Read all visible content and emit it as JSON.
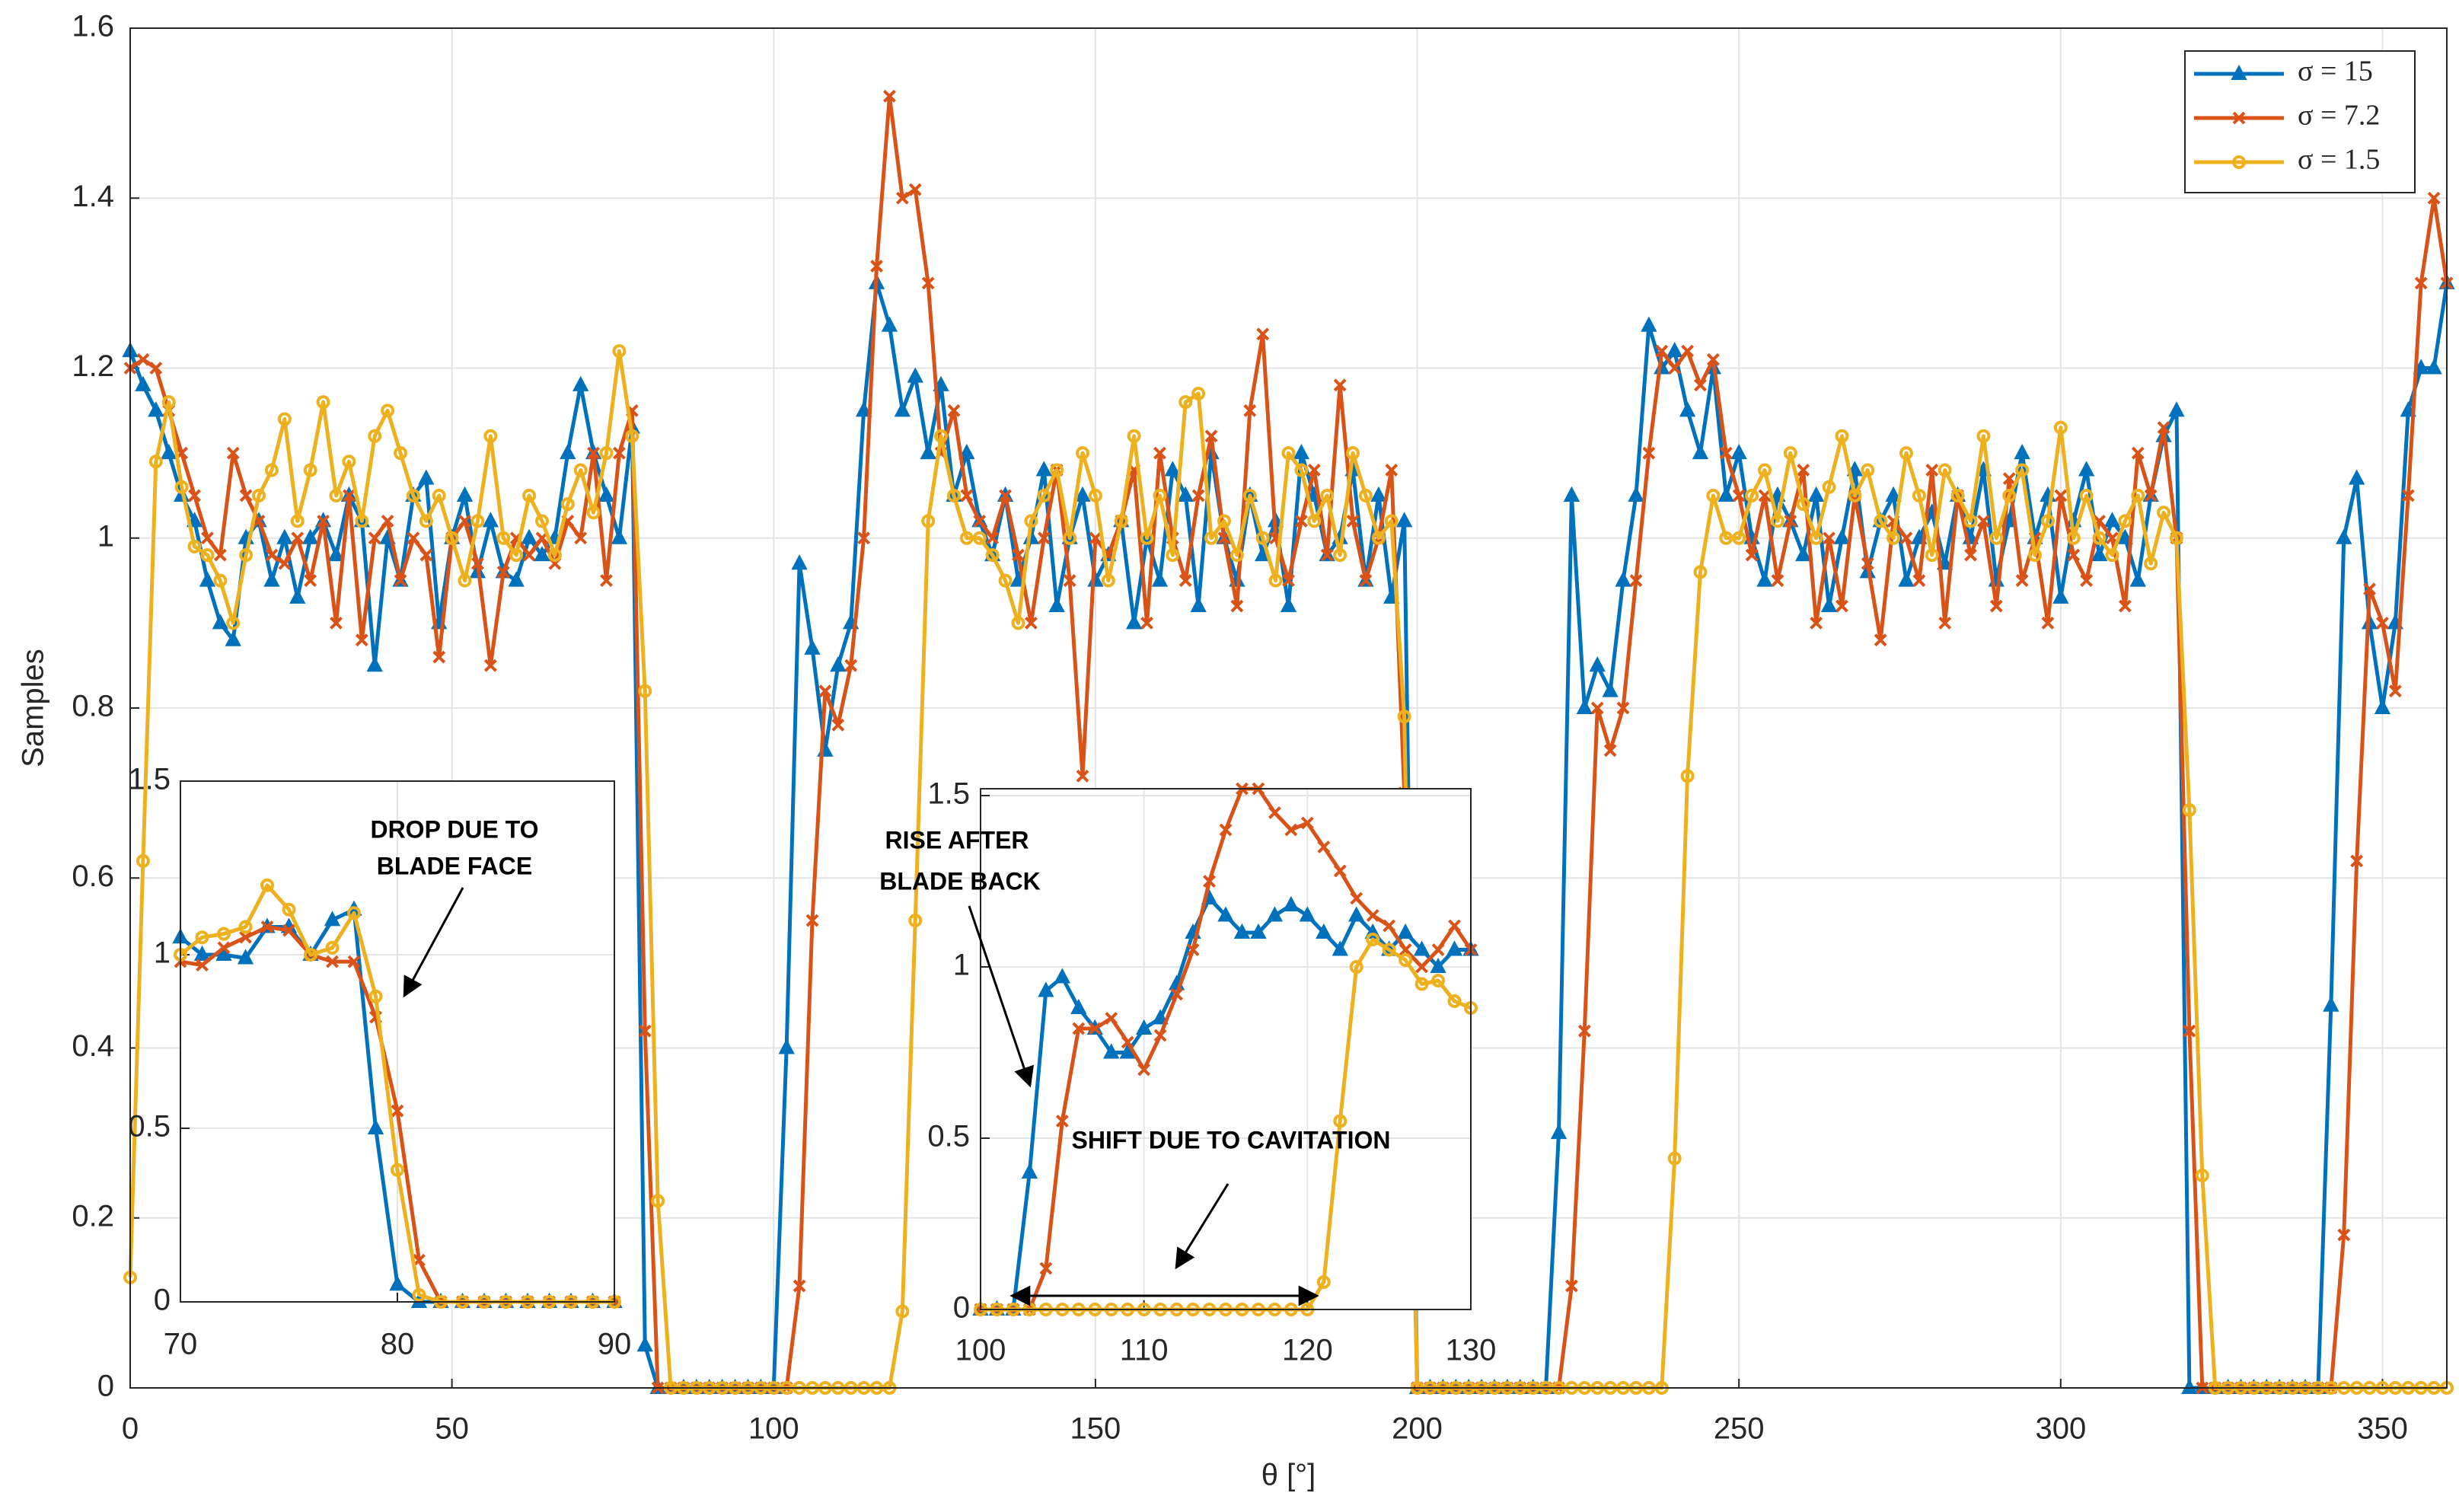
{
  "chart_data": [
    {
      "type": "line",
      "xlabel": "θ [°]",
      "ylabel": "Samples",
      "xlim": [
        0,
        360
      ],
      "ylim": [
        0,
        1.6
      ],
      "xticks": [
        0,
        50,
        100,
        150,
        200,
        250,
        300,
        350
      ],
      "yticks": [
        0,
        0.2,
        0.4,
        0.6,
        0.8,
        1,
        1.2,
        1.4,
        1.6
      ],
      "grid": true,
      "legend": "upper right",
      "x": [
        0,
        2,
        4,
        6,
        8,
        10,
        12,
        14,
        16,
        18,
        20,
        22,
        24,
        26,
        28,
        30,
        32,
        34,
        36,
        38,
        40,
        42,
        44,
        46,
        48,
        50,
        52,
        54,
        56,
        58,
        60,
        62,
        64,
        66,
        68,
        70,
        72,
        74,
        76,
        78,
        80,
        82,
        84,
        86,
        88,
        90,
        92,
        94,
        96,
        98,
        100,
        102,
        104,
        106,
        108,
        110,
        112,
        114,
        116,
        118,
        120,
        122,
        124,
        126,
        128,
        130,
        132,
        134,
        136,
        138,
        140,
        142,
        144,
        146,
        148,
        150,
        152,
        154,
        156,
        158,
        160,
        162,
        164,
        166,
        168,
        170,
        172,
        174,
        176,
        178,
        180,
        182,
        184,
        186,
        188,
        190,
        192,
        194,
        196,
        198,
        200,
        202,
        204,
        206,
        208,
        210,
        212,
        214,
        216,
        218,
        220,
        222,
        224,
        226,
        228,
        230,
        232,
        234,
        236,
        238,
        240,
        242,
        244,
        246,
        248,
        250,
        252,
        254,
        256,
        258,
        260,
        262,
        264,
        266,
        268,
        270,
        272,
        274,
        276,
        278,
        280,
        282,
        284,
        286,
        288,
        290,
        292,
        294,
        296,
        298,
        300,
        302,
        304,
        306,
        308,
        310,
        312,
        314,
        316,
        318,
        320,
        322,
        324,
        326,
        328,
        330,
        332,
        334,
        336,
        338,
        340,
        342,
        344,
        346,
        348,
        350,
        352,
        354,
        356,
        358,
        360
      ],
      "series": [
        {
          "name": "σ = 15",
          "color": "#0072BD",
          "marker": "triangle",
          "values": [
            1.22,
            1.18,
            1.15,
            1.1,
            1.05,
            1.02,
            0.95,
            0.9,
            0.88,
            1.0,
            1.02,
            0.95,
            1.0,
            0.93,
            1.0,
            1.02,
            0.98,
            1.05,
            1.02,
            0.85,
            1.0,
            0.95,
            1.05,
            1.07,
            0.9,
            1.0,
            1.05,
            0.96,
            1.02,
            0.96,
            0.95,
            1.0,
            0.98,
            1.0,
            1.1,
            1.18,
            1.1,
            1.05,
            1.0,
            1.13,
            0.05,
            0,
            0,
            0,
            0,
            0,
            0,
            0,
            0,
            0,
            0,
            0.4,
            0.97,
            0.87,
            0.75,
            0.85,
            0.9,
            1.15,
            1.3,
            1.25,
            1.15,
            1.19,
            1.1,
            1.18,
            1.05,
            1.1,
            1.02,
            0.98,
            1.05,
            0.95,
            1.0,
            1.08,
            0.92,
            1.0,
            1.05,
            0.95,
            0.98,
            1.02,
            0.9,
            1.0,
            0.95,
            1.08,
            1.05,
            0.92,
            1.1,
            1.0,
            0.95,
            1.05,
            0.98,
            1.02,
            0.92,
            1.1,
            1.05,
            0.98,
            1.0,
            1.08,
            0.95,
            1.05,
            0.93,
            1.02,
            0,
            0,
            0,
            0,
            0,
            0,
            0,
            0,
            0,
            0,
            0,
            0.3,
            1.05,
            0.8,
            0.85,
            0.82,
            0.95,
            1.05,
            1.25,
            1.2,
            1.22,
            1.15,
            1.1,
            1.2,
            1.05,
            1.1,
            1.0,
            0.95,
            1.05,
            1.02,
            0.98,
            1.05,
            0.92,
            1.0,
            1.08,
            0.96,
            1.02,
            1.05,
            0.95,
            1.0,
            1.03,
            0.97,
            1.05,
            1.0,
            1.08,
            0.95,
            1.02,
            1.1,
            1.0,
            1.05,
            0.93,
            1.02,
            1.08,
            0.98,
            1.02,
            1.0,
            0.95,
            1.05,
            1.12,
            1.15,
            0,
            0,
            0,
            0,
            0,
            0,
            0,
            0,
            0,
            0,
            0,
            0.45,
            1.0,
            1.07,
            0.9,
            0.8,
            0.9,
            1.15,
            1.2,
            1.2,
            1.3
          ]
        },
        {
          "name": "σ = 7.2",
          "color": "#D95319",
          "marker": "cross",
          "values": [
            1.2,
            1.21,
            1.2,
            1.15,
            1.1,
            1.05,
            1.0,
            0.98,
            1.1,
            1.05,
            1.02,
            0.98,
            0.97,
            1.0,
            0.95,
            1.02,
            0.9,
            1.05,
            0.88,
            1.0,
            1.02,
            0.95,
            1.0,
            0.98,
            0.86,
            1.0,
            1.02,
            0.97,
            0.85,
            0.96,
            1.0,
            0.98,
            1.0,
            0.97,
            1.02,
            1.0,
            1.1,
            0.95,
            1.1,
            1.15,
            0.42,
            0,
            0,
            0,
            0,
            0,
            0,
            0,
            0,
            0,
            0,
            0,
            0.12,
            0.55,
            0.82,
            0.78,
            0.85,
            1.0,
            1.32,
            1.52,
            1.4,
            1.41,
            1.3,
            1.1,
            1.15,
            1.05,
            1.02,
            1.0,
            1.05,
            0.98,
            0.9,
            1.0,
            1.08,
            0.95,
            0.72,
            1.0,
            0.98,
            1.02,
            1.08,
            0.9,
            1.1,
            1.0,
            0.95,
            1.05,
            1.12,
            1.0,
            0.92,
            1.15,
            1.24,
            1.0,
            0.95,
            1.02,
            1.08,
            0.98,
            1.18,
            1.02,
            0.95,
            1.0,
            1.08,
            0.7,
            0,
            0,
            0,
            0,
            0,
            0,
            0,
            0,
            0,
            0,
            0,
            0,
            0.12,
            0.42,
            0.8,
            0.75,
            0.8,
            0.95,
            1.1,
            1.22,
            1.2,
            1.22,
            1.18,
            1.21,
            1.1,
            1.05,
            0.98,
            1.05,
            0.95,
            1.02,
            1.08,
            0.9,
            1.0,
            0.92,
            1.05,
            0.97,
            0.88,
            1.02,
            1.0,
            0.95,
            1.08,
            0.9,
            1.05,
            0.98,
            1.02,
            0.92,
            1.07,
            0.95,
            1.0,
            0.9,
            1.05,
            0.98,
            0.95,
            1.02,
            1.0,
            0.92,
            1.1,
            1.05,
            1.13,
            1.0,
            0.42,
            0,
            0,
            0,
            0,
            0,
            0,
            0,
            0,
            0,
            0,
            0,
            0.18,
            0.62,
            0.94,
            0.9,
            0.82,
            1.05,
            1.3,
            1.4,
            1.3
          ]
        },
        {
          "name": "σ = 1.5",
          "color": "#EDB120",
          "marker": "circle",
          "values": [
            0.13,
            0.62,
            1.09,
            1.16,
            1.06,
            0.99,
            0.98,
            0.95,
            0.9,
            0.98,
            1.05,
            1.08,
            1.14,
            1.02,
            1.08,
            1.16,
            1.05,
            1.09,
            1.02,
            1.12,
            1.15,
            1.1,
            1.05,
            1.02,
            1.05,
            1.0,
            0.95,
            1.02,
            1.12,
            1.0,
            0.98,
            1.05,
            1.02,
            0.98,
            1.04,
            1.08,
            1.03,
            1.1,
            1.22,
            1.12,
            0.82,
            0.22,
            0,
            0,
            0,
            0,
            0,
            0,
            0,
            0,
            0,
            0,
            0,
            0,
            0,
            0,
            0,
            0,
            0,
            0,
            0.09,
            0.55,
            1.02,
            1.12,
            1.05,
            1.0,
            1.0,
            0.98,
            0.95,
            0.9,
            1.02,
            1.05,
            1.08,
            1.0,
            1.1,
            1.05,
            0.95,
            1.02,
            1.12,
            1.0,
            1.05,
            0.98,
            1.16,
            1.17,
            1.0,
            1.02,
            0.98,
            1.05,
            1.0,
            0.95,
            1.1,
            1.08,
            1.02,
            1.05,
            0.98,
            1.1,
            1.05,
            1.0,
            1.02,
            0.79,
            0,
            0,
            0,
            0,
            0,
            0,
            0,
            0,
            0,
            0,
            0,
            0,
            0,
            0,
            0,
            0,
            0,
            0,
            0,
            0,
            0.27,
            0.72,
            0.96,
            1.05,
            1.0,
            1.0,
            1.05,
            1.08,
            1.02,
            1.1,
            1.04,
            1.0,
            1.06,
            1.12,
            1.05,
            1.08,
            1.02,
            1.0,
            1.1,
            1.05,
            0.98,
            1.08,
            1.05,
            1.02,
            1.12,
            1.0,
            1.05,
            1.08,
            0.98,
            1.02,
            1.13,
            1.0,
            1.05,
            1.0,
            0.98,
            1.02,
            1.05,
            0.97,
            1.03,
            1.0,
            0.68,
            0.25,
            0,
            0,
            0,
            0,
            0,
            0,
            0,
            0,
            0,
            0,
            0,
            0,
            0,
            0,
            0,
            0,
            0,
            0,
            0
          ]
        }
      ]
    },
    {
      "type": "line",
      "xlim": [
        70,
        90
      ],
      "ylim": [
        0,
        1.5
      ],
      "xticks": [
        70,
        80,
        90
      ],
      "yticks": [
        0,
        0.5,
        1,
        1.5
      ],
      "grid": true,
      "x": [
        70,
        71,
        72,
        73,
        74,
        75,
        76,
        77,
        78,
        79,
        80,
        81,
        82,
        83,
        84,
        85,
        86,
        87,
        88,
        89,
        90
      ],
      "series": [
        {
          "color": "#0072BD",
          "marker": "triangle",
          "values": [
            1.05,
            1.0,
            1.0,
            0.99,
            1.08,
            1.08,
            1.0,
            1.1,
            1.13,
            0.5,
            0.05,
            0,
            0,
            0,
            0,
            0,
            0,
            0,
            0,
            0,
            0
          ]
        },
        {
          "color": "#D95319",
          "marker": "cross",
          "values": [
            0.98,
            0.97,
            1.02,
            1.05,
            1.08,
            1.07,
            1.0,
            0.98,
            0.98,
            0.82,
            0.55,
            0.12,
            0,
            0,
            0,
            0,
            0,
            0,
            0,
            0,
            0
          ]
        },
        {
          "color": "#EDB120",
          "marker": "circle",
          "values": [
            1.0,
            1.05,
            1.06,
            1.08,
            1.2,
            1.13,
            1.0,
            1.02,
            1.12,
            0.88,
            0.38,
            0.02,
            0,
            0,
            0,
            0,
            0,
            0,
            0,
            0,
            0
          ]
        }
      ],
      "annotations": [
        {
          "lines": [
            "DROP DUE TO",
            "BLADE FACE"
          ]
        }
      ]
    },
    {
      "type": "line",
      "xlim": [
        100,
        130
      ],
      "ylim": [
        0,
        1.52
      ],
      "xticks": [
        100,
        110,
        120,
        130
      ],
      "yticks": [
        0,
        0.5,
        1,
        1.5
      ],
      "grid": true,
      "x": [
        100,
        101,
        102,
        103,
        104,
        105,
        106,
        107,
        108,
        109,
        110,
        111,
        112,
        113,
        114,
        115,
        116,
        117,
        118,
        119,
        120,
        121,
        122,
        123,
        124,
        125,
        126,
        127,
        128,
        129,
        130
      ],
      "series": [
        {
          "color": "#0072BD",
          "marker": "triangle",
          "values": [
            0,
            0,
            0,
            0.4,
            0.93,
            0.97,
            0.88,
            0.82,
            0.75,
            0.75,
            0.82,
            0.85,
            0.95,
            1.1,
            1.2,
            1.15,
            1.1,
            1.1,
            1.15,
            1.18,
            1.15,
            1.1,
            1.05,
            1.15,
            1.1,
            1.05,
            1.1,
            1.05,
            1.0,
            1.05,
            1.05
          ]
        },
        {
          "color": "#D95319",
          "marker": "cross",
          "values": [
            0,
            0,
            0,
            0,
            0.12,
            0.55,
            0.82,
            0.82,
            0.85,
            0.78,
            0.7,
            0.8,
            0.92,
            1.05,
            1.25,
            1.4,
            1.52,
            1.52,
            1.45,
            1.4,
            1.42,
            1.35,
            1.28,
            1.2,
            1.15,
            1.12,
            1.05,
            1.0,
            1.05,
            1.12,
            1.05
          ]
        },
        {
          "color": "#EDB120",
          "marker": "circle",
          "values": [
            0,
            0,
            0,
            0,
            0,
            0,
            0,
            0,
            0,
            0,
            0,
            0,
            0,
            0,
            0,
            0,
            0,
            0,
            0,
            0,
            0,
            0.08,
            0.55,
            1.0,
            1.08,
            1.05,
            1.02,
            0.95,
            0.96,
            0.9,
            0.88
          ]
        }
      ],
      "annotations": [
        {
          "lines": [
            "RISE AFTER",
            "BLADE BACK"
          ]
        },
        {
          "lines": [
            "SHIFT DUE TO CAVITATION"
          ]
        }
      ]
    }
  ]
}
